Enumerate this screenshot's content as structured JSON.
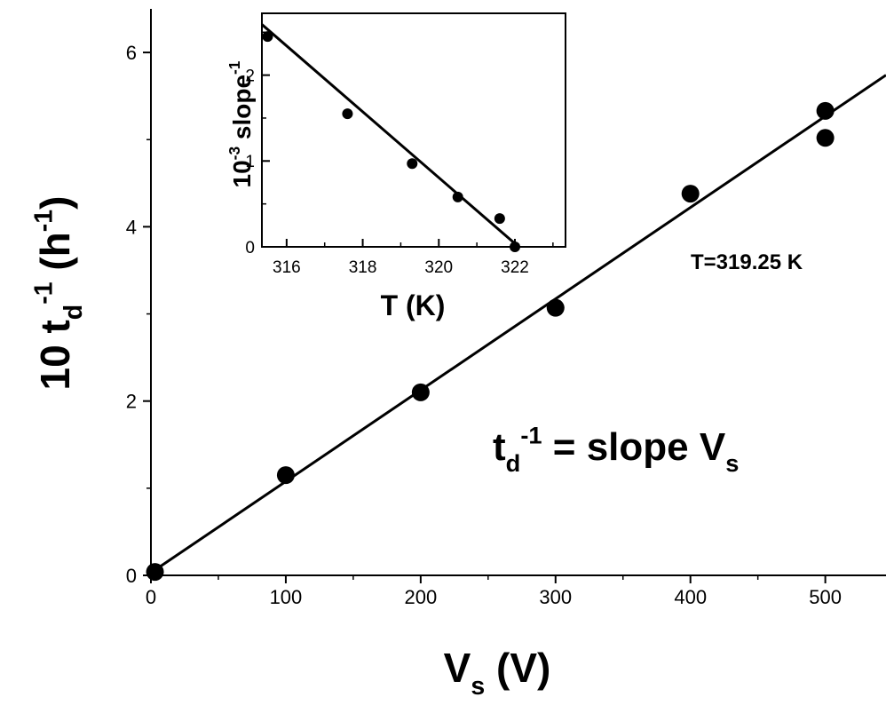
{
  "chart_data": [
    {
      "type": "scatter",
      "x": [
        3,
        100,
        200,
        300,
        400,
        500,
        500
      ],
      "values": [
        0.04,
        1.15,
        2.1,
        3.07,
        4.38,
        5.33,
        5.02
      ],
      "color": "#000000",
      "fit": {
        "x": [
          0,
          545
        ],
        "y": [
          0.03,
          5.74
        ]
      },
      "xlim": [
        0,
        545
      ],
      "ylim": [
        0,
        6.5
      ],
      "xticks": [
        0,
        100,
        200,
        300,
        400,
        500
      ],
      "yticks": [
        0,
        2,
        4,
        6
      ],
      "xminorticks": [
        50,
        150,
        250,
        350,
        450
      ],
      "yminorticks": [
        1,
        3,
        5
      ],
      "xlabel": [
        {
          "text": "V"
        },
        {
          "text": "s",
          "pos": "sub"
        },
        {
          "text": " (V)"
        }
      ],
      "ylabel": [
        {
          "text": "10 t"
        },
        {
          "text": "d",
          "pos": "sub"
        },
        {
          "text": "-1",
          "pos": "sup"
        },
        {
          "text": " (h"
        },
        {
          "text": "-1",
          "pos": "sup"
        },
        {
          "text": ")"
        }
      ],
      "annotations": [
        [
          {
            "text": "T=319.25 K"
          }
        ],
        [
          {
            "text": "t"
          },
          {
            "text": "d",
            "pos": "sub"
          },
          {
            "text": "-1",
            "pos": "sup"
          },
          {
            "text": " = slope V"
          },
          {
            "text": "s",
            "pos": "sub"
          }
        ]
      ]
    },
    {
      "type": "scatter",
      "x": [
        315.5,
        317.6,
        319.3,
        320.5,
        321.6,
        322.0
      ],
      "values": [
        2.45,
        1.55,
        0.97,
        0.58,
        0.33,
        0.0
      ],
      "color": "#000000",
      "fit": {
        "x": [
          315.35,
          322.1
        ],
        "y": [
          2.59,
          0
        ]
      },
      "xlim": [
        315.35,
        323.33
      ],
      "ylim": [
        0,
        2.72
      ],
      "xticks": [
        316,
        318,
        320,
        322
      ],
      "yticks": [
        0,
        1,
        2
      ],
      "xminorticks": [
        317,
        319,
        321,
        323
      ],
      "yminorticks": [
        0.5,
        1.5,
        2.5
      ],
      "xlabel": [
        {
          "text": "T (K)"
        }
      ],
      "ylabel": [
        {
          "text": "10"
        },
        {
          "text": "-3",
          "pos": "sup"
        },
        {
          "text": " slope"
        },
        {
          "text": "-1",
          "pos": "sup"
        }
      ],
      "annotations": []
    }
  ]
}
